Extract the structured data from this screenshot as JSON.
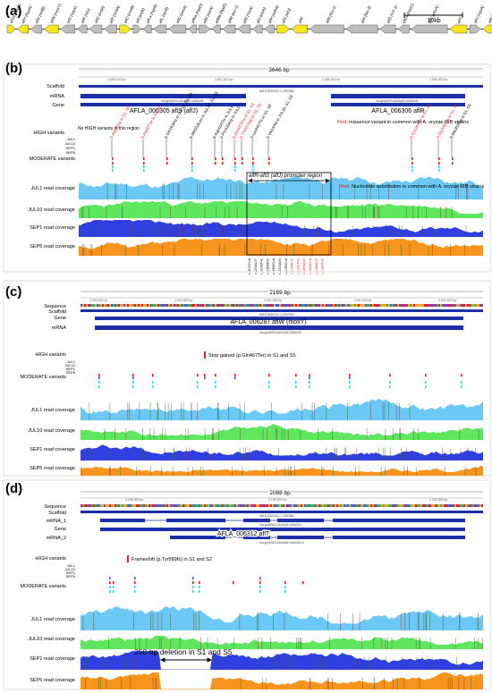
{
  "panel_a": {
    "label": "(a)",
    "scale_label": "10kb",
    "genes": [
      {
        "name": "aflYa (nadA)",
        "dir": "R",
        "color": "#f5e51b"
      },
      {
        "name": "aflY (hypA)",
        "dir": "L",
        "color": "#f5e51b"
      },
      {
        "name": "aflX (ordB)",
        "dir": "L",
        "color": "#bdbdbd"
      },
      {
        "name": "aflW (moxY)",
        "dir": "L",
        "color": "#f5e51b"
      },
      {
        "name": "aflV (cypX)",
        "dir": "L",
        "color": "#bdbdbd"
      },
      {
        "name": "aflK (vbs)",
        "dir": "L",
        "color": "#bdbdbd"
      },
      {
        "name": "aflQ (ordA)",
        "dir": "L",
        "color": "#bdbdbd"
      },
      {
        "name": "aflP (omtA)",
        "dir": "L",
        "color": "#bdbdbd"
      },
      {
        "name": "aflO (omtB)",
        "dir": "R",
        "color": "#f5e51b"
      },
      {
        "name": "aflI (avfA)",
        "dir": "R",
        "color": "#bdbdbd"
      },
      {
        "name": "aflLa (hypB)",
        "dir": "L",
        "color": "#bdbdbd"
      },
      {
        "name": "aflL (verB)",
        "dir": "L",
        "color": "#bdbdbd"
      },
      {
        "name": "aflG (avnA)",
        "dir": "L",
        "color": "#bdbdbd"
      },
      {
        "name": "aflNa (hypD)",
        "dir": "L",
        "color": "#bdbdbd"
      },
      {
        "name": "aflN (verA)",
        "dir": "R",
        "color": "#bdbdbd"
      },
      {
        "name": "aflMa (hypE)",
        "dir": "L",
        "color": "#bdbdbd"
      },
      {
        "name": "aflM (ver-1)",
        "dir": "L",
        "color": "#bdbdbd"
      },
      {
        "name": "aflE (norA)",
        "dir": "L",
        "color": "#bdbdbd"
      },
      {
        "name": "aflJ (estA)",
        "dir": "L",
        "color": "#bdbdbd"
      },
      {
        "name": "aflH (adhA)",
        "dir": "L",
        "color": "#bdbdbd"
      },
      {
        "name": "aflS (aflJ)",
        "dir": "R",
        "color": "#f5e51b"
      },
      {
        "name": "aflR",
        "dir": "L",
        "color": "#f5e51b"
      },
      {
        "name": "aflB (fas-1)",
        "dir": "L",
        "color": "#bdbdbd"
      },
      {
        "name": "aflA (fas-2)",
        "dir": "L",
        "color": "#bdbdbd"
      },
      {
        "name": "aflD (nor-1)",
        "dir": "L",
        "color": "#bdbdbd"
      },
      {
        "name": "aflCa (hypC)",
        "dir": "L",
        "color": "#bdbdbd"
      },
      {
        "name": "aflC (pksA)",
        "dir": "L",
        "color": "#bdbdbd"
      },
      {
        "name": "aflT",
        "dir": "L",
        "color": "#f5e51b"
      },
      {
        "name": "aflU (cypA)",
        "dir": "R",
        "color": "#bdbdbd"
      },
      {
        "name": "aflF (norB)",
        "dir": "L",
        "color": "#f5e51b"
      }
    ]
  },
  "panel_b": {
    "label": "(b)",
    "bp_span": "3646 bp",
    "ticks": [
      "2,558,000 bp",
      "2,557,000 bp",
      "2,556,000 bp",
      "2,555,000 bp"
    ],
    "rows": {
      "scaffold": "Scaffold",
      "mrna": "mRNA",
      "gene": "Gene",
      "high": "HIGH variants",
      "moderate": "MODERATE variants",
      "jul1": "JUL1 read coverage",
      "jul10": "JUL10 read coverage",
      "sep1": "SEP1 read coverage",
      "sep5": "SEP5 read coverage"
    },
    "sample_labels": [
      "JUL1",
      "JUL10",
      "SEP1",
      "SEP5"
    ],
    "scaffold_id": "AAHC0000101.1 | 2557862",
    "mrna_ids": [
      "rna-gnl|WGS:AAHA|AFLA006305",
      "rna-gnl|WGS:AAHA|AFLA006306"
    ],
    "gene_left": "AFLA_006305 aflS (aflJ)",
    "gene_right": "AFLA_006306 aflR",
    "no_high": "No HIGH variants in this region",
    "legend_missense_red": "Red:",
    "legend_missense": "missence variant in common with A. oryzae RIB strains",
    "legend_nt_red": "Red:",
    "legend_nt": "Nucleotide substitution in common with A. oryzae RIB strains",
    "promoter": "aflR-aflS (aflJ) promoter region",
    "variants": [
      {
        "text": "p.Ala53Gly in S1, S5",
        "red": true
      },
      {
        "text": "p.Asp87Thr in S1, S5",
        "red": true
      },
      {
        "text": "p.Gln163Ala in JUL10, S1, S5",
        "red": false
      },
      {
        "text": "p.Met318Leu in JUL10, S1, S5",
        "red": false
      },
      {
        "text": "p.Asp424Thr in JUL1",
        "red": false
      },
      {
        "text": "p.Pro429Arg in JUL1",
        "red": false
      },
      {
        "text": "p.Ser437Phe in S1, S5",
        "red": true
      },
      {
        "text": "p.Thr437Asp in S1, S5",
        "red": true
      },
      {
        "text": "p.Lys440Thr in S1, S5",
        "red": false
      },
      {
        "text": "p.Val14Ala in JUL10, S1, S5",
        "red": false
      },
      {
        "text": "p.Cys263Ter in S1, S5",
        "red": true
      },
      {
        "text": "p.Gly335Cys in S1, S5",
        "red": true
      },
      {
        "text": "p.Met359Val in S1, S5",
        "red": false
      }
    ],
    "promoter_nts": [
      {
        "text": "c.-2070G>A",
        "red": false
      },
      {
        "text": "c.-2051C>T",
        "red": false
      },
      {
        "text": "c.-2034T>C",
        "red": false
      },
      {
        "text": "c.-1994A>G",
        "red": false
      },
      {
        "text": "c.-1966G>A",
        "red": false
      },
      {
        "text": "c.-1913A>G",
        "red": false
      },
      {
        "text": "c.-1780C>A",
        "red": false
      },
      {
        "text": "c.-1745C>T",
        "red": true
      },
      {
        "text": "c.-1721T>C",
        "red": true
      },
      {
        "text": "c.-1694A>G",
        "red": true
      },
      {
        "text": "c.-1653G>A",
        "red": true
      },
      {
        "text": "c.-1569C>T",
        "red": true
      },
      {
        "text": "c.-1433T>C",
        "red": true
      }
    ]
  },
  "panel_c": {
    "label": "(c)",
    "bp_span": "2169 bp",
    "ticks": [
      "2,590,000 bp",
      "2,590,500 bp",
      "2,591,000 bp",
      "2,591,500 bp",
      "2,592,000 bp"
    ],
    "rows": {
      "sequence": "Sequence",
      "scaffold": "Scaffold",
      "gene": "Gene",
      "mrna": "mRNA",
      "high": "HIGH variants",
      "moderate": "MODERATE variants",
      "jul1": "JUL1 read coverage",
      "jul10": "JUL10 read coverage",
      "sep1": "SEP1 read coverage",
      "sep5": "SEP5 read coverage"
    },
    "sample_labels": [
      "JUL1",
      "JUL10",
      "SEP1",
      "SEP5"
    ],
    "scaffold_id": "AAHC0000101.1 | 2557862",
    "gene_name": "AFLA_006287 aflW (moxY)",
    "mrna_id": "rna-gnl|WGS:AAHA|AFLA006287",
    "stop_note": "Stop gained (p.Gln467Ter) in S1 and S5"
  },
  "panel_d": {
    "label": "(d)",
    "bp_span": "2088 bp",
    "ticks": [
      "2,198,000 bp",
      "2,199,000 bp",
      "2,200,000 bp"
    ],
    "rows": {
      "sequence": "Sequence",
      "scaffold": "Scaffold",
      "mrna1": "mRNA_1",
      "gene": "Gene",
      "mrna2": "mRNA_2",
      "high": "HIGH variants",
      "moderate": "MODERATE variants",
      "jul1": "JUL1 read coverage",
      "jul10": "JUL10 read coverage",
      "sep1": "SEP1 read coverage",
      "sep5": "SEP5 read coverage"
    },
    "sample_labels": [
      "JUL1",
      "JUL10",
      "SEP1",
      "SEP5"
    ],
    "scaffold_id": "AAHC0000101.1 | 2557862",
    "gene_name": "AFLA_006312 aflT",
    "mrna_ids": [
      "rna-gnl|WGS:AAHA|AFLA006312",
      "rna-gnl|WGS:AAHA|AFLA006312-2"
    ],
    "frameshift_note": "Frameshift (p.Tyr589fs) in S1 and S2",
    "deletion_note": "258-bp deletion in S1 and S5"
  },
  "colors": {
    "jul1": "#6cc8f4",
    "jul10": "#5ee65e",
    "sep1": "#2f3fe0",
    "sep5": "#f7941d",
    "gene_blue": "#1a2fa8",
    "red": "#e8202a",
    "cyan": "#39d8e8",
    "yellow": "#f5e51b",
    "gray": "#bdbdbd"
  }
}
